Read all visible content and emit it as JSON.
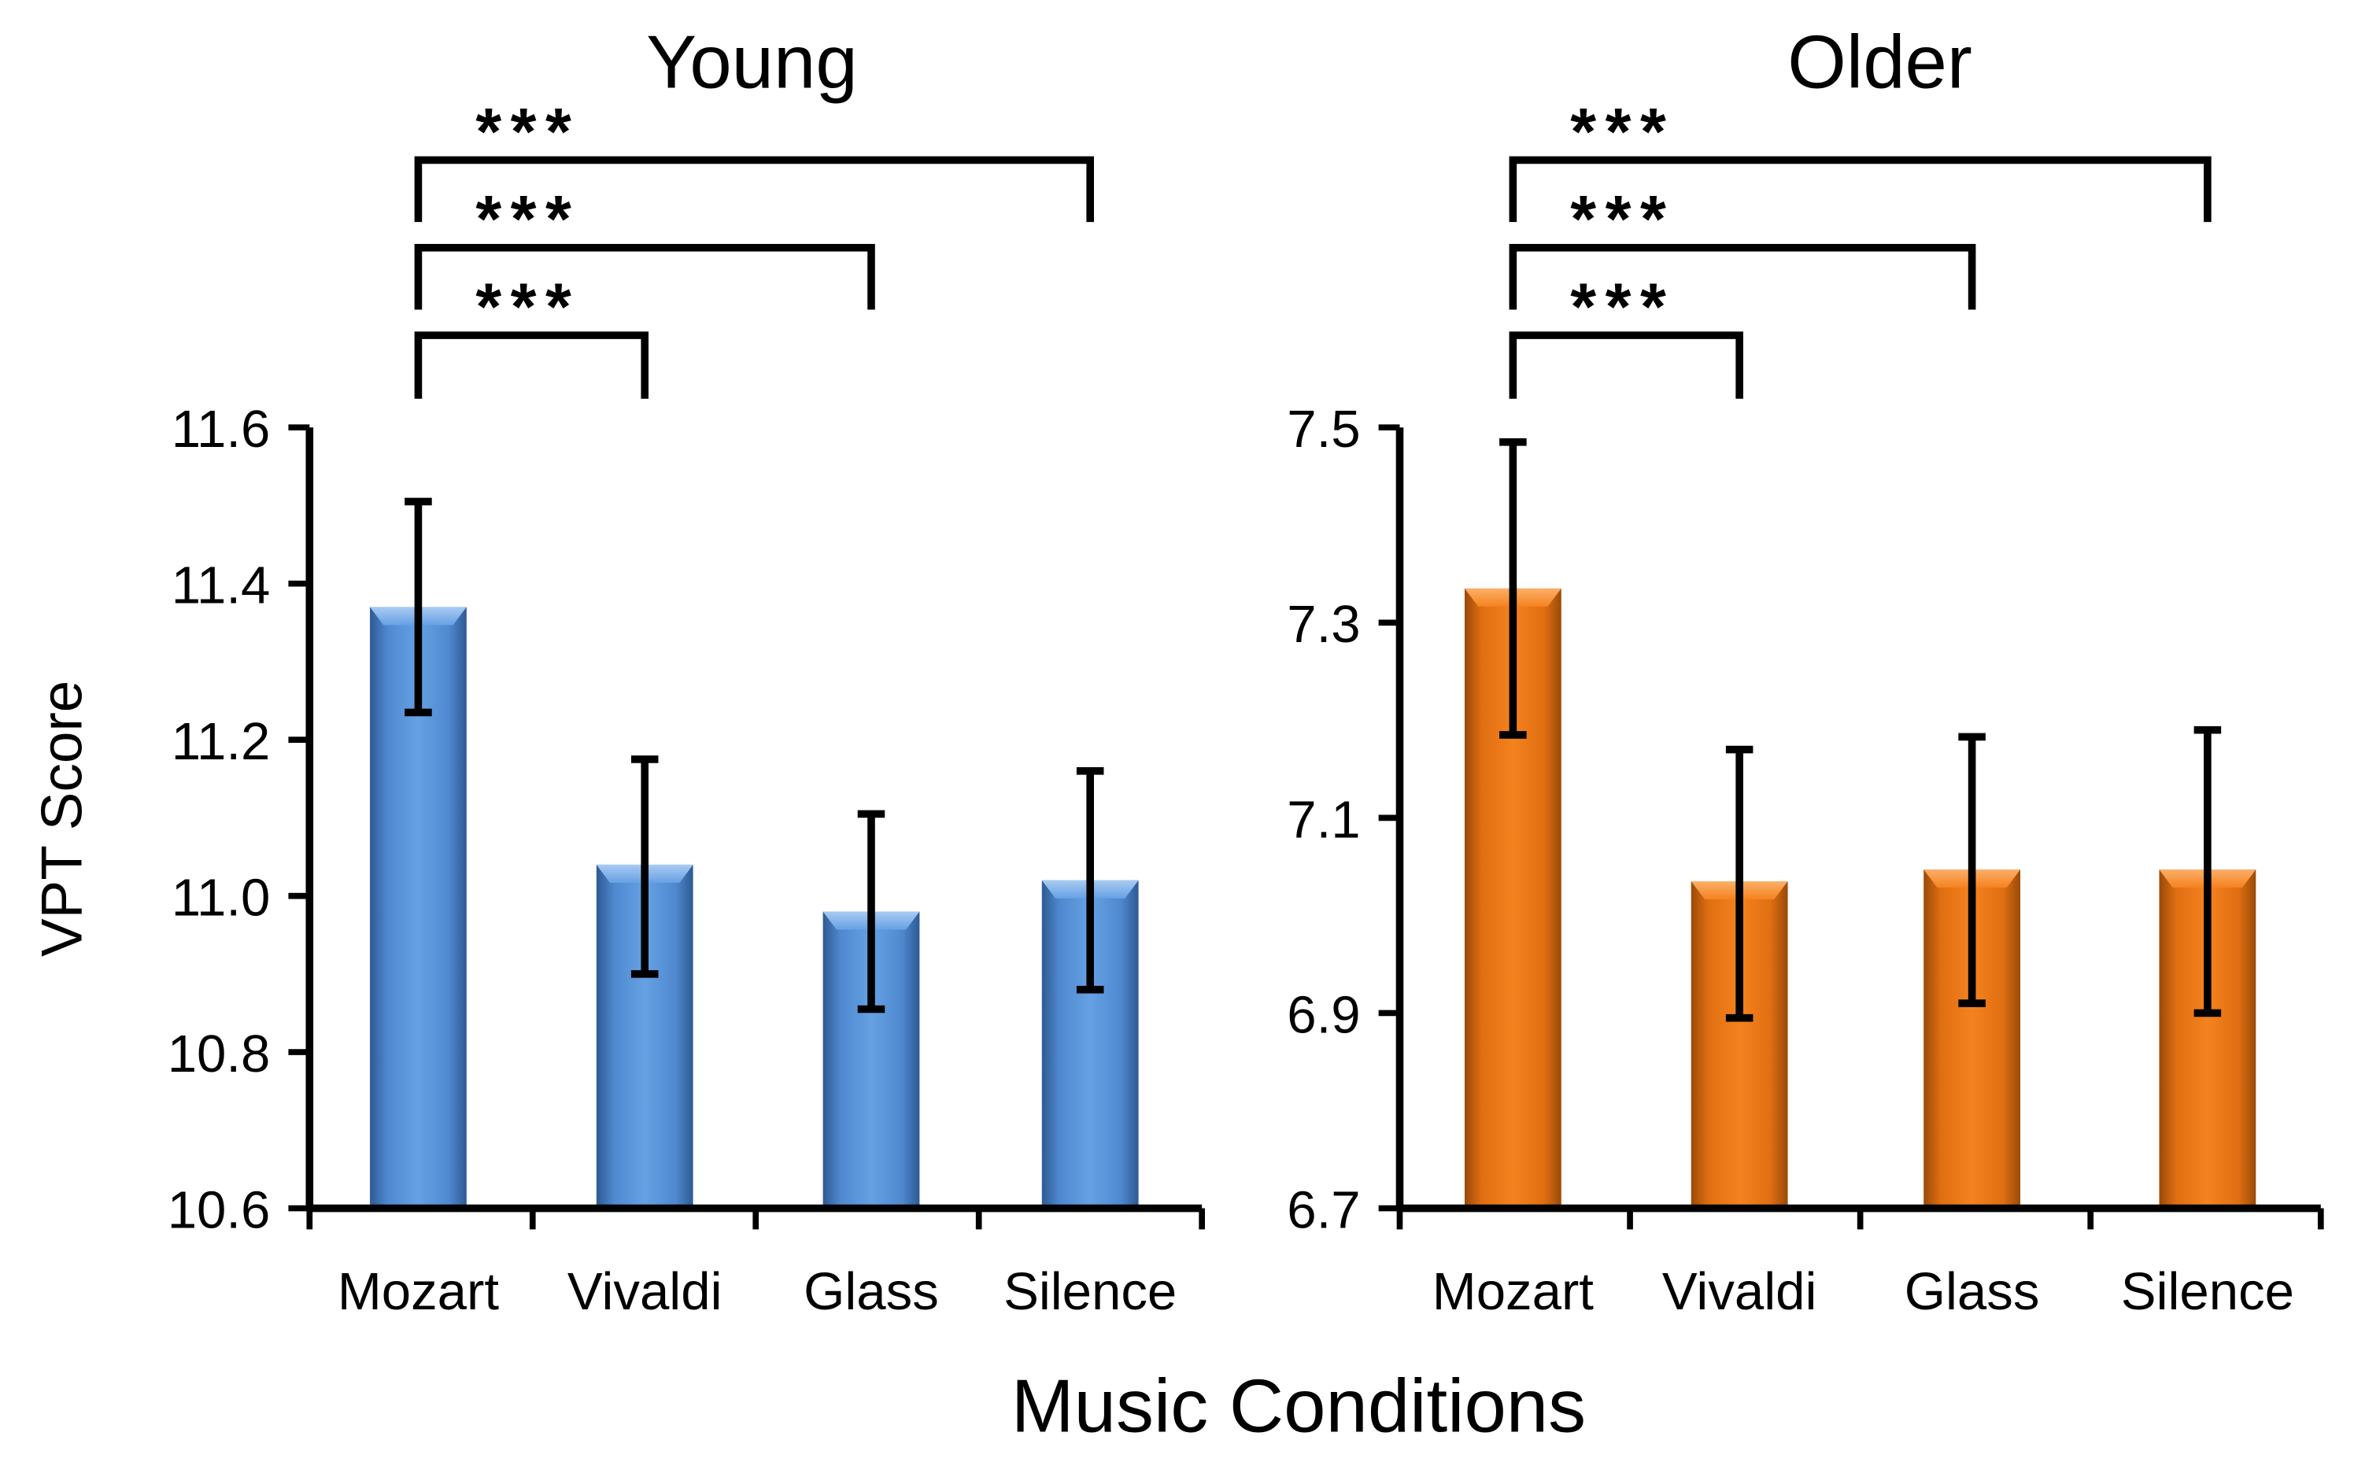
{
  "figure": {
    "ylabel": "VPT Score",
    "xlabel": "Music Conditions"
  },
  "chart_data": [
    {
      "type": "bar",
      "title": "Young",
      "ylabel": "VPT Score",
      "xlabel": "Music Conditions",
      "categories": [
        "Mozart",
        "Vivaldi",
        "Glass",
        "Silence"
      ],
      "values": [
        11.37,
        11.04,
        10.98,
        11.02
      ],
      "error_low": [
        11.235,
        10.9,
        10.855,
        10.88
      ],
      "error_high": [
        11.505,
        11.175,
        11.105,
        11.16
      ],
      "ylim": [
        10.6,
        11.6
      ],
      "yticks": [
        "10.6",
        "10.8",
        "11.0",
        "11.2",
        "11.4",
        "11.6"
      ],
      "color": "#5a96dc",
      "significance": [
        {
          "from": "Mozart",
          "to": "Vivaldi",
          "label": "***"
        },
        {
          "from": "Mozart",
          "to": "Glass",
          "label": "***"
        },
        {
          "from": "Mozart",
          "to": "Silence",
          "label": "***"
        }
      ]
    },
    {
      "type": "bar",
      "title": "Older",
      "ylabel": "VPT Score",
      "xlabel": "Music Conditions",
      "categories": [
        "Mozart",
        "Vivaldi",
        "Glass",
        "Silence"
      ],
      "values": [
        7.335,
        7.035,
        7.047,
        7.047
      ],
      "error_low": [
        7.185,
        6.895,
        6.91,
        6.9
      ],
      "error_high": [
        7.485,
        7.17,
        7.183,
        7.19
      ],
      "ylim": [
        6.7,
        7.5
      ],
      "yticks": [
        "6.7",
        "6.9",
        "7.1",
        "7.3",
        "7.5"
      ],
      "color": "#f07d1e",
      "significance": [
        {
          "from": "Mozart",
          "to": "Vivaldi",
          "label": "***"
        },
        {
          "from": "Mozart",
          "to": "Glass",
          "label": "***"
        },
        {
          "from": "Mozart",
          "to": "Silence",
          "label": "***"
        }
      ]
    }
  ]
}
